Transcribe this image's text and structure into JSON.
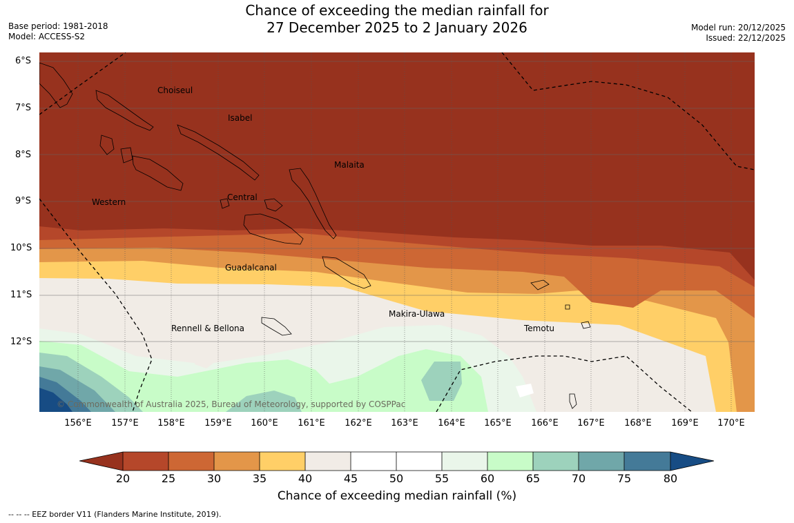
{
  "header": {
    "base_period": "Base period: 1981-2018",
    "model": "Model: ACCESS-S2",
    "title_line1": "Chance of exceeding the median rainfall for",
    "title_line2": "27 December 2025 to 2 January 2026",
    "model_run": "Model run: 20/12/2025",
    "issued": "Issued: 22/12/2025"
  },
  "map": {
    "lat_labels": [
      "6°S",
      "7°S",
      "8°S",
      "9°S",
      "10°S",
      "11°S",
      "12°S"
    ],
    "lon_labels": [
      "156°E",
      "157°E",
      "158°E",
      "159°E",
      "160°E",
      "161°E",
      "162°E",
      "163°E",
      "164°E",
      "165°E",
      "166°E",
      "167°E",
      "168°E",
      "169°E",
      "170°E"
    ],
    "regions": {
      "choiseul": "Choiseul",
      "isabel": "Isabel",
      "malaita": "Malaita",
      "western": "Western",
      "central": "Central",
      "guadalcanal": "Guadalcanal",
      "makira_ulawa": "Makira-Ulawa",
      "rennell_bellona": "Rennell & Bellona",
      "temotu": "Temotu"
    },
    "copyright": "© Commonwealth of Australia 2025, Bureau of Meteorology, supported by COSPPac"
  },
  "colorbar": {
    "ticks": [
      "20",
      "25",
      "30",
      "35",
      "40",
      "45",
      "50",
      "55",
      "60",
      "65",
      "70",
      "75",
      "80"
    ],
    "colors": {
      "below_20": "#97321e",
      "b20_25": "#b5472a",
      "b25_30": "#cd6734",
      "b30_35": "#e39649",
      "b35_40": "#ffcf67",
      "b40_45": "#f1ece6",
      "b45_55": "#ffffff",
      "b55_60": "#eaf6ea",
      "b60_65": "#c8fcc8",
      "b65_70": "#9dd2bc",
      "b70_75": "#70a7a9",
      "b75_80": "#447a98",
      "above_80": "#174c84"
    },
    "label": "Chance of exceeding median rainfall (%)"
  },
  "footnote": "--  --  -- EEZ border V11 (Flanders Marine Institute, 2019)."
}
